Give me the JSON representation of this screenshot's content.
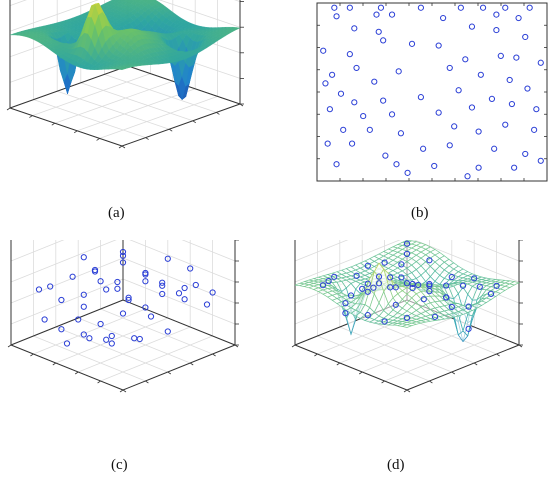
{
  "captions": {
    "a": "(a)",
    "b": "(b)",
    "c": "(c)",
    "d": "(d)"
  },
  "colors": {
    "axis": "#333333",
    "grid": "#dcdcdc",
    "marker": "#2b3fd6",
    "surface_low": "#1f3f9e",
    "surface_mid": "#2fa6a0",
    "surface_high": "#f3d72c",
    "mesh_low": "#2a7cc7",
    "mesh_high": "#e4db4a"
  },
  "chart_data": [
    {
      "panel": "a",
      "type": "surface3d",
      "colormap": "parula",
      "xlim": [
        0,
        1
      ],
      "ylim": [
        0,
        1
      ],
      "zlim": [
        0,
        1
      ],
      "grid": true,
      "peaks": [
        {
          "x": 0.45,
          "y": 0.2,
          "z": 0.95,
          "kind": "peak"
        },
        {
          "x": 0.75,
          "y": 0.25,
          "z": 0.1,
          "kind": "trough"
        },
        {
          "x": 0.2,
          "y": 0.7,
          "z": 0.05,
          "kind": "trough"
        }
      ]
    },
    {
      "panel": "b",
      "type": "scatter",
      "marker": "open-circle",
      "xlim": [
        0,
        1
      ],
      "ylim": [
        0,
        1
      ],
      "points": [
        [
          0.06,
          0.99
        ],
        [
          0.13,
          0.99
        ],
        [
          0.27,
          0.99
        ],
        [
          0.45,
          0.99
        ],
        [
          0.63,
          0.99
        ],
        [
          0.73,
          0.99
        ],
        [
          0.83,
          0.99
        ],
        [
          0.94,
          0.99
        ],
        [
          0.07,
          0.94
        ],
        [
          0.25,
          0.95
        ],
        [
          0.32,
          0.95
        ],
        [
          0.55,
          0.93
        ],
        [
          0.79,
          0.95
        ],
        [
          0.89,
          0.93
        ],
        [
          0.15,
          0.87
        ],
        [
          0.26,
          0.85
        ],
        [
          0.28,
          0.8
        ],
        [
          0.68,
          0.88
        ],
        [
          0.79,
          0.86
        ],
        [
          0.92,
          0.82
        ],
        [
          0.53,
          0.77
        ],
        [
          0.01,
          0.74
        ],
        [
          0.13,
          0.72
        ],
        [
          0.41,
          0.78
        ],
        [
          0.65,
          0.69
        ],
        [
          0.81,
          0.71
        ],
        [
          0.88,
          0.7
        ],
        [
          0.99,
          0.67
        ],
        [
          0.05,
          0.6
        ],
        [
          0.16,
          0.64
        ],
        [
          0.35,
          0.62
        ],
        [
          0.58,
          0.64
        ],
        [
          0.72,
          0.6
        ],
        [
          0.85,
          0.57
        ],
        [
          0.93,
          0.52
        ],
        [
          0.02,
          0.55
        ],
        [
          0.24,
          0.56
        ],
        [
          0.09,
          0.49
        ],
        [
          0.15,
          0.44
        ],
        [
          0.28,
          0.45
        ],
        [
          0.45,
          0.47
        ],
        [
          0.62,
          0.51
        ],
        [
          0.77,
          0.46
        ],
        [
          0.04,
          0.4
        ],
        [
          0.19,
          0.36
        ],
        [
          0.32,
          0.37
        ],
        [
          0.53,
          0.38
        ],
        [
          0.68,
          0.41
        ],
        [
          0.86,
          0.43
        ],
        [
          0.97,
          0.4
        ],
        [
          0.1,
          0.28
        ],
        [
          0.22,
          0.28
        ],
        [
          0.36,
          0.26
        ],
        [
          0.6,
          0.3
        ],
        [
          0.71,
          0.27
        ],
        [
          0.83,
          0.31
        ],
        [
          0.96,
          0.28
        ],
        [
          0.03,
          0.2
        ],
        [
          0.14,
          0.2
        ],
        [
          0.29,
          0.13
        ],
        [
          0.46,
          0.17
        ],
        [
          0.58,
          0.19
        ],
        [
          0.78,
          0.17
        ],
        [
          0.92,
          0.14
        ],
        [
          0.07,
          0.08
        ],
        [
          0.34,
          0.08
        ],
        [
          0.51,
          0.07
        ],
        [
          0.71,
          0.06
        ],
        [
          0.87,
          0.06
        ],
        [
          0.99,
          0.1
        ],
        [
          0.66,
          0.01
        ],
        [
          0.39,
          0.03
        ]
      ]
    },
    {
      "panel": "c",
      "type": "scatter3d",
      "marker": "open-circle",
      "xlim": [
        0,
        1
      ],
      "ylim": [
        0,
        1
      ],
      "zlim": [
        0,
        1
      ],
      "grid": true,
      "points": [
        [
          0.1,
          0.9,
          0.5
        ],
        [
          0.2,
          0.85,
          0.55
        ],
        [
          0.15,
          0.7,
          0.5
        ],
        [
          0.3,
          0.8,
          0.45
        ],
        [
          0.25,
          0.6,
          0.55
        ],
        [
          0.4,
          0.75,
          0.5
        ],
        [
          0.35,
          0.55,
          0.4
        ],
        [
          0.5,
          0.7,
          0.6
        ],
        [
          0.45,
          0.5,
          0.45
        ],
        [
          0.6,
          0.8,
          0.5
        ],
        [
          0.55,
          0.4,
          0.55
        ],
        [
          0.7,
          0.65,
          0.45
        ],
        [
          0.65,
          0.3,
          0.5
        ],
        [
          0.8,
          0.55,
          0.55
        ],
        [
          0.75,
          0.2,
          0.45
        ],
        [
          0.9,
          0.45,
          0.5
        ],
        [
          0.85,
          0.1,
          0.55
        ],
        [
          0.95,
          0.3,
          0.45
        ],
        [
          0.1,
          0.5,
          0.3
        ],
        [
          0.2,
          0.35,
          0.25
        ],
        [
          0.3,
          0.2,
          0.3
        ],
        [
          0.4,
          0.25,
          0.2
        ],
        [
          0.5,
          0.15,
          0.25
        ],
        [
          0.6,
          0.05,
          0.3
        ],
        [
          0.15,
          0.15,
          0.6
        ],
        [
          0.05,
          0.3,
          0.55
        ],
        [
          0.25,
          0.05,
          0.5
        ],
        [
          0.7,
          0.9,
          0.35
        ],
        [
          0.8,
          0.75,
          0.3
        ],
        [
          0.9,
          0.7,
          0.35
        ],
        [
          0.6,
          0.6,
          0.7
        ],
        [
          0.7,
          0.45,
          0.65
        ],
        [
          0.5,
          0.9,
          0.65
        ],
        [
          0.35,
          0.95,
          0.6
        ],
        [
          0.95,
          0.6,
          0.6
        ],
        [
          0.85,
          0.85,
          0.55
        ],
        [
          0.45,
          0.35,
          0.1
        ],
        [
          0.55,
          0.25,
          0.15
        ],
        [
          0.35,
          0.45,
          0.15
        ],
        [
          0.65,
          0.15,
          0.1
        ],
        [
          0.2,
          0.55,
          0.7
        ],
        [
          0.1,
          0.65,
          0.65
        ],
        [
          0.3,
          0.35,
          0.6
        ],
        [
          0.75,
          0.35,
          0.2
        ],
        [
          0.9,
          0.2,
          0.2
        ],
        [
          0.4,
          0.05,
          0.6
        ],
        [
          0.05,
          0.8,
          0.45
        ],
        [
          0.95,
          0.95,
          0.5
        ]
      ]
    },
    {
      "panel": "d",
      "type": "mesh3d",
      "overlay": "scatter3d",
      "marker": "open-circle",
      "xlim": [
        0,
        1
      ],
      "ylim": [
        0,
        1
      ],
      "zlim": [
        0,
        1
      ],
      "grid": true
    }
  ]
}
